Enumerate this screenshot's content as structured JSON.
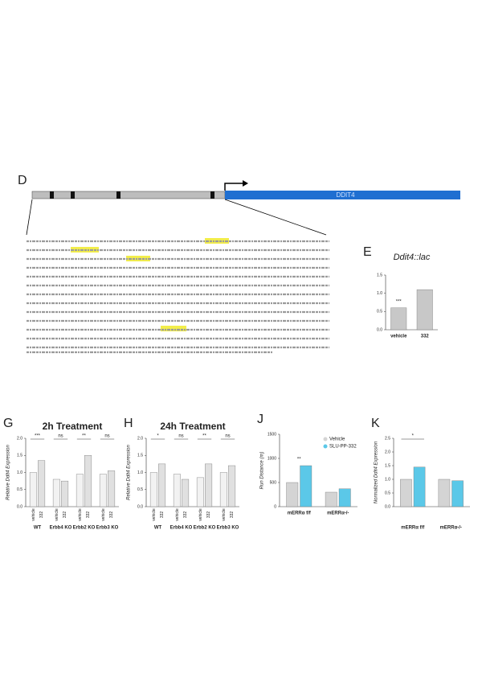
{
  "gene_diagram": {
    "label": "D",
    "gene": "DDIT4"
  },
  "chart_data": [
    {
      "label": "E",
      "type": "bar",
      "title": "Ddit4::lac",
      "categories": [
        "vehicle",
        "332"
      ],
      "values": [
        0.6,
        1.1
      ],
      "color": "#c8c8c8",
      "ylim": [
        0,
        1.5
      ],
      "yticks": [
        {
          "value": 0,
          "label": "0.0"
        },
        {
          "value": 0.5,
          "label": "0.5"
        },
        {
          "value": 1,
          "label": "1.0"
        },
        {
          "value": 1.5,
          "label": "1.5"
        }
      ],
      "annotations": [
        "***"
      ]
    },
    {
      "label": "G",
      "type": "bar",
      "title": "2h Treatment",
      "ylabel": "Relative Ddit4 Expression",
      "categories": [
        "WT",
        "Erbb4 KO",
        "Erbb2 KO",
        "Erbb3 KO"
      ],
      "series": [
        {
          "name": "vehicle",
          "color": "#f2f2f2",
          "values": [
            1.0,
            0.8,
            0.95,
            0.95
          ]
        },
        {
          "name": "332",
          "color": "#e0e0e0",
          "values": [
            1.35,
            0.75,
            1.5,
            1.05
          ]
        }
      ],
      "ylim": [
        0,
        2
      ],
      "yticks": [
        {
          "value": 0,
          "label": "0.0"
        },
        {
          "value": 0.5,
          "label": "0.5"
        },
        {
          "value": 1,
          "label": "1.0"
        },
        {
          "value": 1.5,
          "label": "1.5"
        },
        {
          "value": 2,
          "label": "2.0"
        }
      ],
      "annotations": [
        "***",
        "ns",
        "**",
        "ns"
      ]
    },
    {
      "label": "H",
      "type": "bar",
      "title": "24h Treatment",
      "ylabel": "Relative Ddit4 Expression",
      "categories": [
        "WT",
        "Erbb4 KO",
        "Erbb2 KO",
        "Erbb3 KO"
      ],
      "series": [
        {
          "name": "vehicle",
          "color": "#f2f2f2",
          "values": [
            1.0,
            0.95,
            0.85,
            1.0
          ]
        },
        {
          "name": "332",
          "color": "#e0e0e0",
          "values": [
            1.25,
            0.8,
            1.25,
            1.2
          ]
        }
      ],
      "ylim": [
        0,
        2
      ],
      "yticks": [
        {
          "value": 0,
          "label": "0.0"
        },
        {
          "value": 0.5,
          "label": "0.5"
        },
        {
          "value": 1,
          "label": "1.0"
        },
        {
          "value": 1.5,
          "label": "1.5"
        },
        {
          "value": 2,
          "label": "2.0"
        }
      ],
      "annotations": [
        "*",
        "ns",
        "**",
        "ns"
      ]
    },
    {
      "label": "J",
      "type": "bar",
      "ylabel": "Run Distance (m)",
      "categories": [
        "mERRα f/f",
        "mERRα-/-"
      ],
      "series": [
        {
          "name": "Vehicle",
          "color": "#d4d4d4",
          "values": [
            500,
            300
          ]
        },
        {
          "name": "SLU-PP-332",
          "color": "#5bc8e8",
          "values": [
            850,
            370
          ]
        }
      ],
      "ylim": [
        0,
        1500
      ],
      "yticks": [
        0,
        500,
        1000,
        1500
      ],
      "legend": "upper right",
      "annotations": [
        "**"
      ]
    },
    {
      "label": "K",
      "type": "bar",
      "ylabel": "Normalized Ddit4 Expression",
      "categories": [
        "mERRα f/f",
        "mERRα-/-"
      ],
      "series": [
        {
          "color": "#d4d4d4",
          "values": [
            1.0,
            1.0
          ]
        },
        {
          "color": "#5bc8e8",
          "values": [
            1.45,
            0.95
          ]
        }
      ],
      "ylim": [
        0,
        2.5
      ],
      "yticks": [
        {
          "value": 0,
          "label": "0.0"
        },
        {
          "value": 0.5,
          "label": "0.5"
        },
        {
          "value": 1,
          "label": "1.0"
        },
        {
          "value": 1.5,
          "label": "1.5"
        },
        {
          "value": 2,
          "label": "2.0"
        },
        {
          "value": 2.5,
          "label": "2.5"
        }
      ],
      "annotations": [
        "*"
      ]
    }
  ]
}
